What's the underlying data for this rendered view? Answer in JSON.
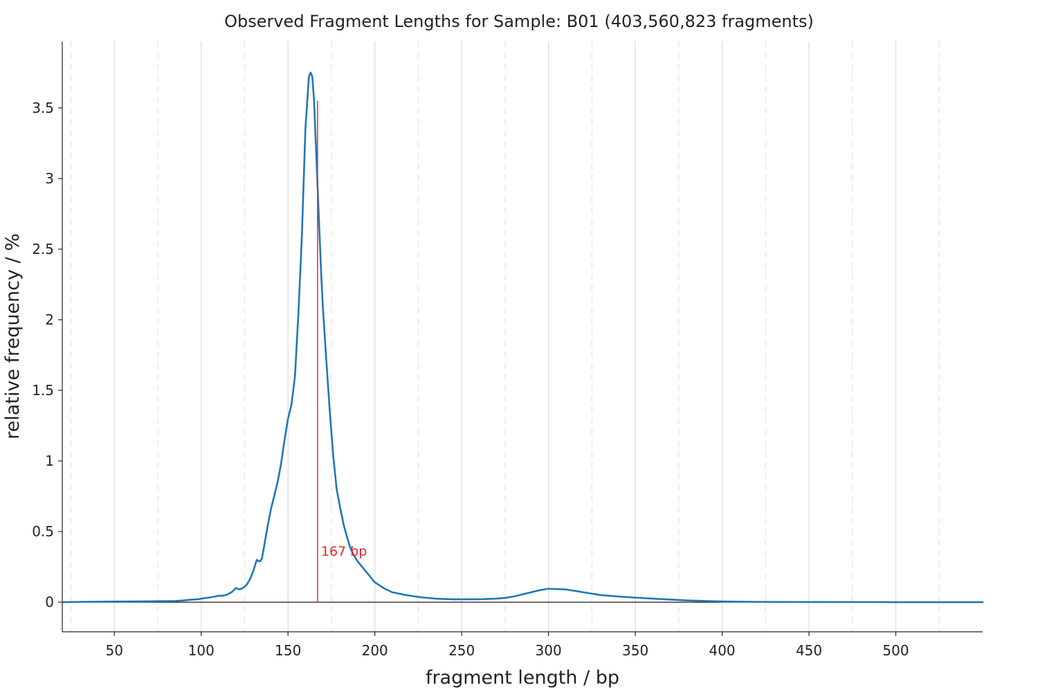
{
  "chart_data": {
    "type": "line",
    "title": "Observed Fragment Lengths for Sample: B01 (403,560,823 fragments)",
    "xlabel": "fragment length / bp",
    "ylabel": "relative frequency / %",
    "xlim": [
      20,
      550
    ],
    "ylim": [
      -0.21,
      3.97
    ],
    "x_major_ticks": [
      50,
      100,
      150,
      200,
      250,
      300,
      350,
      400,
      450,
      500
    ],
    "x_major_tick_labels": [
      "50",
      "100",
      "150",
      "200",
      "250",
      "300",
      "350",
      "400",
      "450",
      "500"
    ],
    "x_minor_gridlines": [
      25,
      75,
      125,
      175,
      225,
      275,
      325,
      375,
      425,
      475,
      525
    ],
    "y_ticks": [
      0,
      0.5,
      1,
      1.5,
      2,
      2.5,
      3,
      3.5
    ],
    "y_tick_labels": [
      "0",
      "0.5",
      "1",
      "1.5",
      "2",
      "2.5",
      "3",
      "3.5"
    ],
    "grid": "vertical",
    "line_color": "#1f77b4",
    "zero_line_color": "#000000",
    "series": [
      {
        "x": [
          20,
          30,
          40,
          50,
          60,
          70,
          80,
          85,
          90,
          92,
          95,
          98,
          100,
          103,
          106,
          108,
          110,
          112,
          114,
          116,
          118,
          120,
          122,
          124,
          126,
          128,
          130,
          132,
          133,
          134,
          135,
          136,
          138,
          140,
          142,
          144,
          146,
          148,
          150,
          152,
          154,
          156,
          158,
          160,
          162,
          163,
          164,
          165,
          166,
          167,
          168,
          169,
          170,
          172,
          174,
          176,
          178,
          180,
          182,
          184,
          186,
          188,
          190,
          192,
          194,
          196,
          198,
          200,
          205,
          210,
          218,
          226,
          235,
          245,
          255,
          262,
          270,
          275,
          280,
          285,
          290,
          295,
          300,
          310,
          320,
          330,
          340,
          350,
          360,
          370,
          380,
          390,
          400,
          410,
          420,
          450,
          500,
          550
        ],
        "y": [
          0.0,
          0.002,
          0.003,
          0.004,
          0.005,
          0.006,
          0.007,
          0.008,
          0.012,
          0.015,
          0.018,
          0.02,
          0.025,
          0.03,
          0.035,
          0.04,
          0.045,
          0.045,
          0.05,
          0.06,
          0.075,
          0.1,
          0.09,
          0.1,
          0.12,
          0.16,
          0.22,
          0.3,
          0.29,
          0.29,
          0.31,
          0.38,
          0.52,
          0.65,
          0.75,
          0.85,
          0.98,
          1.15,
          1.3,
          1.4,
          1.6,
          2.05,
          2.6,
          3.35,
          3.72,
          3.75,
          3.72,
          3.55,
          3.25,
          2.95,
          2.65,
          2.35,
          2.1,
          1.72,
          1.36,
          1.04,
          0.8,
          0.67,
          0.55,
          0.46,
          0.38,
          0.33,
          0.29,
          0.26,
          0.23,
          0.2,
          0.17,
          0.14,
          0.1,
          0.07,
          0.05,
          0.035,
          0.025,
          0.02,
          0.02,
          0.021,
          0.025,
          0.03,
          0.04,
          0.055,
          0.07,
          0.085,
          0.095,
          0.09,
          0.07,
          0.05,
          0.04,
          0.032,
          0.025,
          0.018,
          0.012,
          0.008,
          0.005,
          0.003,
          0.002,
          0.001,
          0.0,
          0.0
        ]
      }
    ],
    "annotations": [
      {
        "type": "vline",
        "x": 167,
        "color": "#e8262b",
        "label": "167 bp"
      }
    ]
  }
}
